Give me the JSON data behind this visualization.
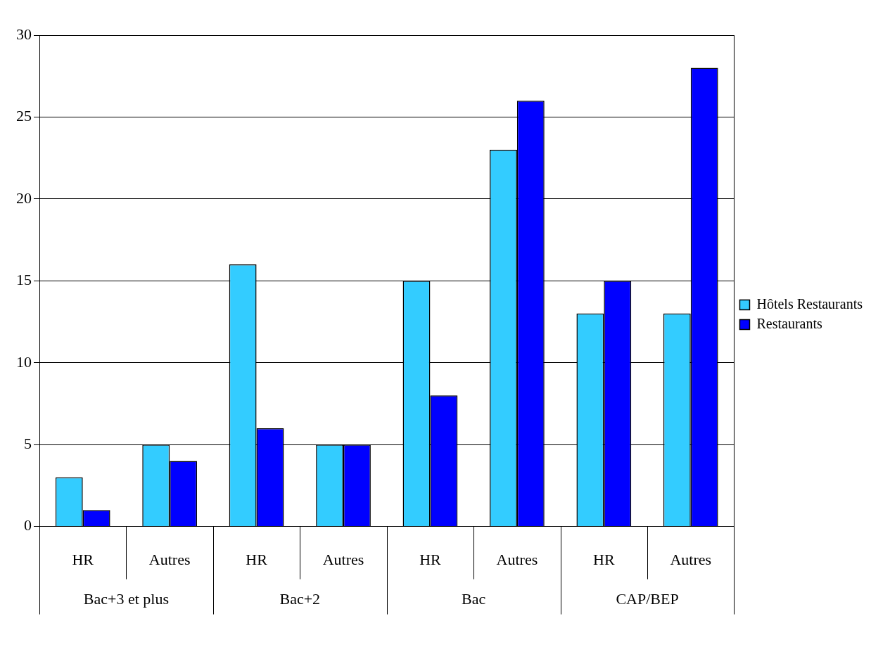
{
  "chart_data": {
    "type": "bar",
    "categories": [
      "HR",
      "Autres",
      "HR",
      "Autres",
      "HR",
      "Autres",
      "HR",
      "Autres"
    ],
    "series": [
      {
        "name": "Hôtels Restaurants",
        "color": "#33ccff",
        "values": [
          3,
          5,
          16,
          5,
          15,
          23,
          13,
          13
        ]
      },
      {
        "name": "Restaurants",
        "color": "#0000ff",
        "values": [
          1,
          4,
          6,
          5,
          8,
          26,
          15,
          28
        ]
      }
    ],
    "annotations": [
      "Bac+3 et plus",
      "Bac+2",
      "Bac",
      "CAP/BEP"
    ],
    "ylim": [
      0,
      30
    ],
    "yticks": [
      0,
      5,
      10,
      15,
      20,
      25,
      30
    ],
    "grid": "y",
    "legend": "right"
  }
}
